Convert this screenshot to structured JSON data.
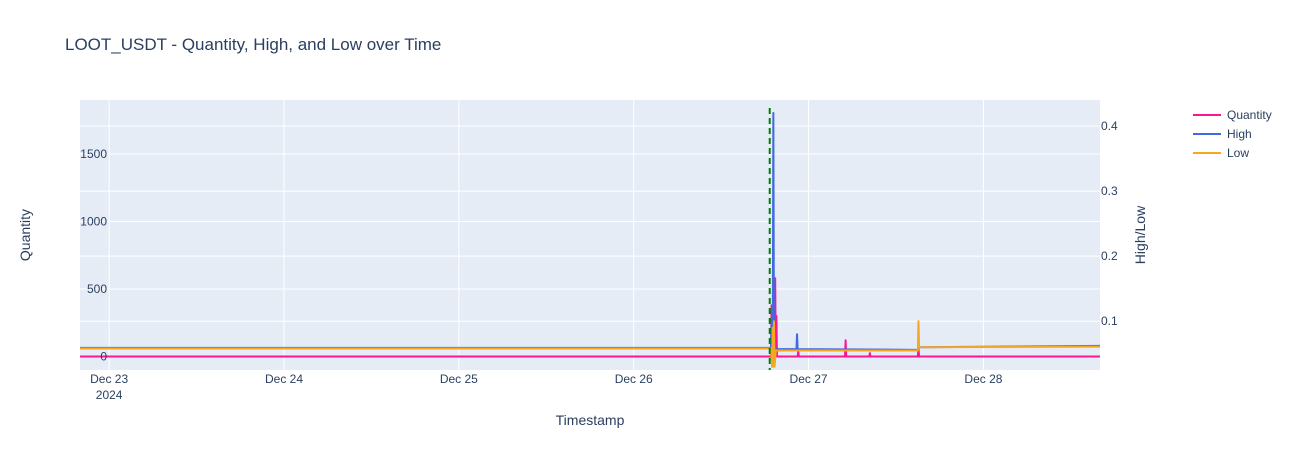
{
  "chart_data": {
    "type": "line",
    "title": "LOOT_USDT - Quantity, High, and Low over Time",
    "xlabel": "Timestamp",
    "ylabel_left": "Quantity",
    "ylabel_right": "High/Low",
    "x_tick_labels": [
      {
        "value": "2024-12-23",
        "label": "Dec 23",
        "sublabel": "2024"
      },
      {
        "value": "2024-12-24",
        "label": "Dec 24",
        "sublabel": ""
      },
      {
        "value": "2024-12-25",
        "label": "Dec 25",
        "sublabel": ""
      },
      {
        "value": "2024-12-26",
        "label": "Dec 26",
        "sublabel": ""
      },
      {
        "value": "2024-12-27",
        "label": "Dec 27",
        "sublabel": ""
      },
      {
        "value": "2024-12-28",
        "label": "Dec 28",
        "sublabel": ""
      }
    ],
    "xlim": [
      "2024-12-22T20:00",
      "2024-12-28T16:00"
    ],
    "y_left": {
      "range": [
        -100,
        1900
      ],
      "ticks": [
        0,
        500,
        1000,
        1500
      ],
      "tick_labels": [
        "0",
        "500",
        "1000",
        "1500"
      ]
    },
    "y_right": {
      "range": [
        0.025,
        0.44
      ],
      "ticks": [
        0.1,
        0.2,
        0.3,
        0.4
      ],
      "tick_labels": [
        "0.1",
        "0.2",
        "0.3",
        "0.4"
      ]
    },
    "vertical_line": {
      "x": "2024-12-26T18:40",
      "color": "#008000",
      "style": "dashed"
    },
    "grid": true,
    "legend": "top-right",
    "series": [
      {
        "name": "Quantity",
        "axis": "left",
        "color": "#ff1493",
        "points": [
          [
            "2024-12-22T20:00",
            0
          ],
          [
            "2024-12-26T18:50",
            0
          ],
          [
            "2024-12-26T18:55",
            380
          ],
          [
            "2024-12-26T19:00",
            0
          ],
          [
            "2024-12-26T19:05",
            240
          ],
          [
            "2024-12-26T19:10",
            0
          ],
          [
            "2024-12-26T19:20",
            0
          ],
          [
            "2024-12-26T19:25",
            580
          ],
          [
            "2024-12-26T19:30",
            0
          ],
          [
            "2024-12-26T19:35",
            300
          ],
          [
            "2024-12-26T19:40",
            0
          ],
          [
            "2024-12-26T22:30",
            0
          ],
          [
            "2024-12-26T22:35",
            40
          ],
          [
            "2024-12-26T22:40",
            0
          ],
          [
            "2024-12-27T05:00",
            0
          ],
          [
            "2024-12-27T05:05",
            120
          ],
          [
            "2024-12-27T05:10",
            0
          ],
          [
            "2024-12-27T08:20",
            0
          ],
          [
            "2024-12-27T08:25",
            25
          ],
          [
            "2024-12-27T08:30",
            0
          ],
          [
            "2024-12-27T15:00",
            0
          ],
          [
            "2024-12-27T15:05",
            60
          ],
          [
            "2024-12-27T15:10",
            0
          ],
          [
            "2024-12-28T16:00",
            0
          ]
        ]
      },
      {
        "name": "High",
        "axis": "right",
        "color": "#4169e1",
        "points": [
          [
            "2024-12-22T20:00",
            0.059
          ],
          [
            "2024-12-26T18:50",
            0.059
          ],
          [
            "2024-12-26T19:00",
            0.12
          ],
          [
            "2024-12-26T19:05",
            0.05
          ],
          [
            "2024-12-26T19:10",
            0.42
          ],
          [
            "2024-12-26T19:15",
            0.05
          ],
          [
            "2024-12-26T19:30",
            0.057
          ],
          [
            "2024-12-26T22:20",
            0.057
          ],
          [
            "2024-12-26T22:25",
            0.08
          ],
          [
            "2024-12-26T22:30",
            0.057
          ],
          [
            "2024-12-27T15:00",
            0.056
          ],
          [
            "2024-12-27T15:05",
            0.06
          ],
          [
            "2024-12-28T16:00",
            0.062
          ]
        ]
      },
      {
        "name": "Low",
        "axis": "right",
        "color": "#f5a623",
        "points": [
          [
            "2024-12-22T20:00",
            0.058
          ],
          [
            "2024-12-26T18:50",
            0.058
          ],
          [
            "2024-12-26T19:00",
            0.03
          ],
          [
            "2024-12-26T19:05",
            0.09
          ],
          [
            "2024-12-26T19:10",
            0.03
          ],
          [
            "2024-12-26T19:15",
            0.1
          ],
          [
            "2024-12-26T19:20",
            0.03
          ],
          [
            "2024-12-26T19:30",
            0.055
          ],
          [
            "2024-12-27T15:00",
            0.055
          ],
          [
            "2024-12-27T15:05",
            0.1
          ],
          [
            "2024-12-27T15:10",
            0.06
          ],
          [
            "2024-12-28T16:00",
            0.061
          ]
        ]
      }
    ]
  }
}
